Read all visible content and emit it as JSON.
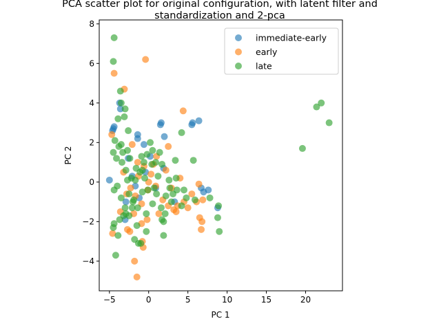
{
  "chart_data": {
    "type": "scatter",
    "title": "PCA scatter plot for original configuration, with latent filter and\nstandardization and 2-pca",
    "xlabel": "PC 1",
    "ylabel": "PC 2",
    "xlim": [
      -6.3,
      24.7
    ],
    "ylim": [
      -5.5,
      8.2
    ],
    "xticks": [
      -5,
      0,
      5,
      10,
      15,
      20
    ],
    "yticks": [
      -4,
      -2,
      0,
      2,
      4,
      6,
      8
    ],
    "grid": false,
    "legend_position": "top-right",
    "series": [
      {
        "name": "immediate-early",
        "color": "#1f77b4",
        "points": [
          [
            -5.0,
            0.1
          ],
          [
            -4.6,
            2.6
          ],
          [
            -4.4,
            2.8
          ],
          [
            -4.5,
            2.7
          ],
          [
            -3.6,
            3.7
          ],
          [
            -3.7,
            4.0
          ],
          [
            -1.4,
            2.4
          ],
          [
            -1.4,
            2.2
          ],
          [
            -0.6,
            1.9
          ],
          [
            1.5,
            2.9
          ],
          [
            1.6,
            3.0
          ],
          [
            2.0,
            2.3
          ],
          [
            1.9,
            0.7
          ],
          [
            5.5,
            2.9
          ],
          [
            5.6,
            3.0
          ],
          [
            6.4,
            3.1
          ],
          [
            -2.6,
            1.2
          ],
          [
            -2.1,
            0.3
          ],
          [
            -1.2,
            -0.8
          ],
          [
            0.2,
            1.3
          ],
          [
            6.7,
            -0.3
          ],
          [
            7.0,
            -0.5
          ],
          [
            7.6,
            -0.4
          ],
          [
            8.8,
            -1.3
          ],
          [
            -2.9,
            -1.0
          ],
          [
            -1.7,
            -0.2
          ],
          [
            0.9,
            -0.3
          ],
          [
            -3.0,
            -1.9
          ],
          [
            3.3,
            -1.0
          ],
          [
            -0.4,
            0.5
          ]
        ]
      },
      {
        "name": "early",
        "color": "#ff7f0e",
        "points": [
          [
            -4.4,
            5.5
          ],
          [
            -3.1,
            4.7
          ],
          [
            -0.4,
            6.2
          ],
          [
            -4.7,
            2.4
          ],
          [
            4.4,
            3.6
          ],
          [
            2.5,
            1.8
          ],
          [
            -1.4,
            1.0
          ],
          [
            -0.6,
            0.8
          ],
          [
            0.3,
            0.4
          ],
          [
            -2.3,
            -0.3
          ],
          [
            -1.7,
            -0.7
          ],
          [
            -0.9,
            -1.1
          ],
          [
            -0.1,
            -0.4
          ],
          [
            0.9,
            -0.2
          ],
          [
            1.8,
            -0.9
          ],
          [
            2.5,
            -1.2
          ],
          [
            3.2,
            -1.4
          ],
          [
            3.7,
            -1.2
          ],
          [
            4.5,
            -1.0
          ],
          [
            5.0,
            -1.3
          ],
          [
            5.5,
            -0.6
          ],
          [
            6.1,
            -1.0
          ],
          [
            6.4,
            -0.1
          ],
          [
            6.9,
            -0.9
          ],
          [
            6.5,
            -1.8
          ],
          [
            6.8,
            -2.0
          ],
          [
            6.7,
            -2.4
          ],
          [
            -2.7,
            -2.4
          ],
          [
            -2.4,
            -2.5
          ],
          [
            -0.8,
            -3.0
          ],
          [
            -0.7,
            -3.3
          ],
          [
            -1.8,
            -4.0
          ],
          [
            -1.5,
            -4.8
          ],
          [
            -4.6,
            -2.6
          ],
          [
            -3.6,
            -1.5
          ],
          [
            -2.1,
            1.9
          ],
          [
            -1.9,
            -1.6
          ],
          [
            -1.3,
            0.3
          ],
          [
            0.6,
            0.9
          ],
          [
            1.3,
            -1.6
          ],
          [
            -0.2,
            -1.9
          ],
          [
            2.9,
            -0.3
          ],
          [
            -3.2,
            0.5
          ],
          [
            4.0,
            0.2
          ],
          [
            -2.8,
            -0.6
          ],
          [
            0.0,
            0.0
          ],
          [
            1.0,
            1.3
          ],
          [
            3.5,
            -1.5
          ],
          [
            -0.9,
            -2.1
          ],
          [
            2.2,
            0.6
          ]
        ]
      },
      {
        "name": "late",
        "color": "#2ca02c",
        "points": [
          [
            -4.4,
            7.3
          ],
          [
            -4.5,
            6.1
          ],
          [
            -3.6,
            4.6
          ],
          [
            -3.5,
            4.0
          ],
          [
            -3.0,
            3.7
          ],
          [
            -3.9,
            3.2
          ],
          [
            -2.6,
            2.6
          ],
          [
            -3.1,
            3.3
          ],
          [
            -4.3,
            2.1
          ],
          [
            -3.5,
            1.9
          ],
          [
            -2.7,
            1.6
          ],
          [
            -4.5,
            1.5
          ],
          [
            -4.1,
            1.2
          ],
          [
            -3.4,
            1.0
          ],
          [
            -2.9,
            0.6
          ],
          [
            -2.2,
            0.2
          ],
          [
            -1.6,
            0.7
          ],
          [
            -1.1,
            0.5
          ],
          [
            -0.6,
            1.0
          ],
          [
            -0.2,
            1.4
          ],
          [
            0.5,
            1.6
          ],
          [
            0.9,
            1.0
          ],
          [
            1.4,
            1.5
          ],
          [
            1.7,
            0.9
          ],
          [
            -4.4,
            -0.4
          ],
          [
            -3.5,
            -0.8
          ],
          [
            -3.0,
            -1.3
          ],
          [
            -2.5,
            -0.6
          ],
          [
            -2.0,
            -1.0
          ],
          [
            -1.4,
            -1.3
          ],
          [
            -0.8,
            -0.5
          ],
          [
            -0.3,
            -1.6
          ],
          [
            0.5,
            -1.1
          ],
          [
            1.0,
            -0.6
          ],
          [
            1.6,
            -1.3
          ],
          [
            2.2,
            -0.7
          ],
          [
            2.9,
            -1.0
          ],
          [
            3.6,
            -0.4
          ],
          [
            4.2,
            -1.2
          ],
          [
            4.8,
            -0.8
          ],
          [
            -4.5,
            -2.3
          ],
          [
            -4.4,
            -2.1
          ],
          [
            -4.2,
            -3.7
          ],
          [
            -3.9,
            -2.7
          ],
          [
            -2.5,
            -1.7
          ],
          [
            -2.1,
            -1.3
          ],
          [
            -1.5,
            -2.2
          ],
          [
            -0.3,
            -2.5
          ],
          [
            -1.8,
            -2.9
          ],
          [
            -1.3,
            -3.1
          ],
          [
            -1.0,
            -3.1
          ],
          [
            1.9,
            -2.7
          ],
          [
            1.7,
            -1.9
          ],
          [
            2.1,
            -1.6
          ],
          [
            3.4,
            1.1
          ],
          [
            4.2,
            2.5
          ],
          [
            5.7,
            1.1
          ],
          [
            7.8,
            -0.8
          ],
          [
            8.9,
            -1.2
          ],
          [
            8.8,
            -1.8
          ],
          [
            9.0,
            -2.5
          ],
          [
            19.6,
            1.7
          ],
          [
            21.4,
            3.8
          ],
          [
            22.0,
            4.0
          ],
          [
            23.0,
            3.0
          ],
          [
            -3.8,
            1.8
          ],
          [
            -3.3,
            1.5
          ],
          [
            -2.4,
            1.2
          ],
          [
            0.2,
            2.0
          ],
          [
            -0.8,
            0.6
          ],
          [
            2.6,
            0.1
          ],
          [
            3.1,
            -0.6
          ],
          [
            -3.7,
            -1.9
          ],
          [
            -2.9,
            -1.6
          ],
          [
            -1.9,
            -0.9
          ],
          [
            -0.5,
            0.2
          ],
          [
            0.7,
            -0.3
          ],
          [
            1.2,
            0.3
          ],
          [
            5.9,
            -0.9
          ],
          [
            3.5,
            0.2
          ],
          [
            -4.0,
            -0.2
          ],
          [
            -2.7,
            0.1
          ],
          [
            -1.7,
            0.1
          ],
          [
            -0.1,
            -0.4
          ],
          [
            1.9,
            -2.0
          ],
          [
            -3.2,
            -1.7
          ],
          [
            4.5,
            -0.4
          ],
          [
            -0.9,
            1.3
          ],
          [
            2.7,
            -0.3
          ],
          [
            0.4,
            0.9
          ]
        ]
      }
    ]
  }
}
